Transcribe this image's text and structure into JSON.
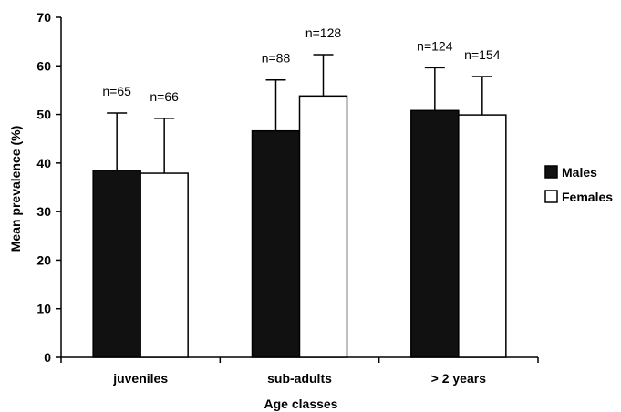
{
  "chart_data": {
    "type": "bar",
    "categories": [
      "juveniles",
      "sub-adults",
      "> 2 years"
    ],
    "series": [
      {
        "name": "Males",
        "color": "#111111",
        "values": [
          38.5,
          46.6,
          50.8
        ],
        "error_plus": [
          11.8,
          10.5,
          8.8
        ],
        "n_labels": [
          "n=65",
          "n=88",
          "n=124"
        ]
      },
      {
        "name": "Females",
        "color": "#ffffff",
        "values": [
          37.9,
          53.8,
          49.9
        ],
        "error_plus": [
          11.3,
          8.5,
          7.9
        ],
        "n_labels": [
          "n=66",
          "n=128",
          "n=154"
        ]
      }
    ],
    "xlabel": "Age classes",
    "ylabel": "Mean prevalence (%)",
    "ylim": [
      0,
      70
    ],
    "yticks": [
      0,
      10,
      20,
      30,
      40,
      50,
      60,
      70
    ],
    "grid": false,
    "legend_position": "right"
  }
}
